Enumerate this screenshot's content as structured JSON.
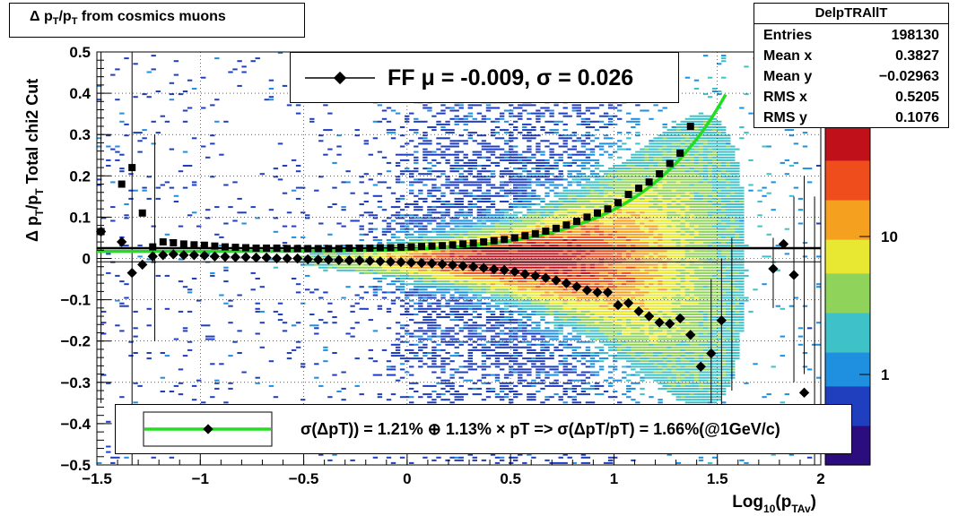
{
  "title": {
    "symbol": "Δ",
    "text_parts": [
      "p",
      "T",
      "/p",
      "T",
      " from cosmics muons"
    ]
  },
  "stats": {
    "name": "DelpTRAllT",
    "rows": [
      {
        "key": "Entries",
        "value": "198130"
      },
      {
        "key": "Mean x",
        "value": "0.3827"
      },
      {
        "key": "Mean y",
        "value": "−0.02963"
      },
      {
        "key": "RMS x",
        "value": "0.5205"
      },
      {
        "key": "RMS y",
        "value": "0.1076"
      }
    ]
  },
  "fit_legend": {
    "text": "FF μ = -0.009, σ =   0.026"
  },
  "resolution_legend": {
    "text": "σ(ΔpT)) =  1.21% ⊕  1.13% × pT => σ(ΔpT/pT) =  1.66%(@1GeV/c)"
  },
  "colors": {
    "fit_curve": "#22dd22",
    "markers": "#000000",
    "palette": [
      "#2b0d7e",
      "#1f3fbf",
      "#1f8fe0",
      "#3fc1c8",
      "#8fd35a",
      "#e8e832",
      "#f6a020",
      "#ef4d1c",
      "#c0101a"
    ]
  },
  "chart_data": {
    "type": "heatmap",
    "title": "Δ pT/pT from cosmics muons",
    "xlabel": "Log10(pTAv)",
    "ylabel": "Δ pT/pT  Total chi2 Cut",
    "xlim": [
      -1.5,
      2.0
    ],
    "ylim": [
      -0.5,
      0.5
    ],
    "x_ticks": [
      "−1.5",
      "−1",
      "−0.5",
      "0",
      "0.5",
      "1",
      "1.5",
      "2"
    ],
    "y_ticks": [
      "−0.5",
      "−0.4",
      "−0.3",
      "−0.2",
      "−0.1",
      "0",
      "0.1",
      "0.2",
      "0.3",
      "0.4",
      "0.5"
    ],
    "z_scale": "log",
    "z_ticks": [
      {
        "value": 1,
        "label": "1"
      },
      {
        "value": 10,
        "label": "10"
      }
    ],
    "grid": true,
    "reference_line_y": 0.025,
    "series": [
      {
        "name": "mean",
        "x": [
          -1.48,
          -1.38,
          -1.33,
          -1.28,
          -1.23,
          -1.18,
          -1.13,
          -1.08,
          -1.03,
          -0.98,
          -0.93,
          -0.88,
          -0.83,
          -0.78,
          -0.73,
          -0.68,
          -0.63,
          -0.58,
          -0.53,
          -0.48,
          -0.43,
          -0.38,
          -0.33,
          -0.28,
          -0.23,
          -0.18,
          -0.13,
          -0.08,
          -0.03,
          0.02,
          0.07,
          0.12,
          0.17,
          0.22,
          0.27,
          0.32,
          0.37,
          0.42,
          0.47,
          0.52,
          0.57,
          0.62,
          0.67,
          0.72,
          0.77,
          0.82,
          0.87,
          0.92,
          0.97,
          1.02,
          1.07,
          1.12,
          1.17,
          1.22,
          1.27,
          1.32,
          1.37,
          1.42,
          1.47,
          1.52,
          1.57,
          1.62,
          1.67,
          1.72,
          1.77,
          1.82,
          1.87,
          1.92,
          1.97
        ],
        "y": [
          0.065,
          0.04,
          -0.035,
          -0.015,
          0.005,
          0.008,
          0.01,
          0.008,
          0.008,
          0.007,
          0.005,
          0.004,
          0.003,
          0.003,
          0.002,
          0.002,
          0.0,
          0.0,
          0.0,
          -0.002,
          -0.003,
          -0.003,
          -0.004,
          -0.005,
          -0.005,
          -0.006,
          -0.007,
          -0.008,
          -0.009,
          -0.01,
          -0.011,
          -0.012,
          -0.014,
          -0.016,
          -0.018,
          -0.02,
          -0.023,
          -0.026,
          -0.028,
          -0.032,
          -0.038,
          -0.042,
          -0.047,
          -0.053,
          -0.06,
          -0.068,
          -0.077,
          -0.082,
          -0.082,
          -0.113,
          -0.108,
          -0.128,
          -0.14,
          -0.155,
          -0.158,
          -0.145,
          -0.185,
          -0.262,
          -0.23,
          -0.15,
          null,
          null,
          null,
          null,
          -0.025,
          0.035,
          -0.04,
          -0.325,
          null
        ]
      },
      {
        "name": "sigma",
        "x": [
          -1.48,
          -1.38,
          -1.33,
          -1.28,
          -1.23,
          -1.18,
          -1.13,
          -1.08,
          -1.03,
          -0.98,
          -0.93,
          -0.88,
          -0.83,
          -0.78,
          -0.73,
          -0.68,
          -0.63,
          -0.58,
          -0.53,
          -0.48,
          -0.43,
          -0.38,
          -0.33,
          -0.28,
          -0.23,
          -0.18,
          -0.13,
          -0.08,
          -0.03,
          0.02,
          0.07,
          0.12,
          0.17,
          0.22,
          0.27,
          0.32,
          0.37,
          0.42,
          0.47,
          0.52,
          0.57,
          0.62,
          0.67,
          0.72,
          0.77,
          0.82,
          0.87,
          0.92,
          0.97,
          1.02,
          1.07,
          1.12,
          1.17,
          1.22,
          1.27,
          1.32,
          1.37
        ],
        "y": [
          0.065,
          0.18,
          0.22,
          0.11,
          0.028,
          0.04,
          0.038,
          0.035,
          0.033,
          0.032,
          0.03,
          0.028,
          0.027,
          0.026,
          0.025,
          0.025,
          0.025,
          0.024,
          0.024,
          0.024,
          0.024,
          0.024,
          0.024,
          0.025,
          0.025,
          0.025,
          0.026,
          0.026,
          0.027,
          0.028,
          0.029,
          0.03,
          0.031,
          0.033,
          0.035,
          0.037,
          0.04,
          0.043,
          0.046,
          0.05,
          0.055,
          0.06,
          0.066,
          0.073,
          0.081,
          0.09,
          0.1,
          0.11,
          0.12,
          0.135,
          0.155,
          0.17,
          0.185,
          0.205,
          0.23,
          0.255,
          0.32
        ]
      },
      {
        "name": "fit",
        "formula": "sqrt(a^2 + (b*10^x)^2)",
        "params": {
          "a": 0.0121,
          "b": 0.0113
        },
        "x_range": [
          -1.5,
          1.55
        ]
      }
    ]
  }
}
